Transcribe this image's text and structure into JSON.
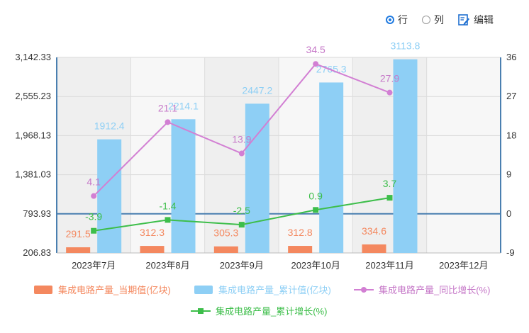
{
  "toolbar": {
    "options": [
      {
        "label": "行",
        "selected": true
      },
      {
        "label": "列",
        "selected": false
      }
    ],
    "edit_label": "编辑",
    "accent": "#1f7ae0"
  },
  "chart_data": {
    "type": "bar",
    "categories": [
      "2023年7月",
      "2023年8月",
      "2023年9月",
      "2023年10月",
      "2023年11月",
      "2023年12月"
    ],
    "series": [
      {
        "name": "集成电路产量_当期值(亿块)",
        "type": "bar",
        "axis": "left",
        "color": "#f4885f",
        "label_color": "#f4885f",
        "values": [
          291.5,
          312.3,
          305.3,
          312.8,
          334.6,
          null
        ]
      },
      {
        "name": "集成电路产量_累计值(亿块)",
        "type": "bar",
        "axis": "left",
        "color": "#8ecff5",
        "label_color": "#8ecff5",
        "values": [
          1912.4,
          2214.1,
          2447.2,
          2765.3,
          3113.8,
          null
        ]
      },
      {
        "name": "集成电路产量_同比增长(%)",
        "type": "line",
        "axis": "right",
        "color": "#d27fd3",
        "label_color": "#c679c8",
        "values": [
          4.1,
          21.1,
          13.9,
          34.5,
          27.9,
          null
        ]
      },
      {
        "name": "集成电路产量_累计增长(%)",
        "type": "line",
        "axis": "right",
        "color": "#3dbe4a",
        "label_color": "#3dbe4a",
        "values": [
          -3.9,
          -1.4,
          -2.5,
          0.9,
          3.7,
          null
        ]
      }
    ],
    "left_axis": {
      "ticks": [
        "206.83",
        "793.93",
        "1,381.03",
        "1,968.13",
        "2,555.23",
        "3,142.33"
      ],
      "min": 206.83,
      "max": 3142.33
    },
    "right_axis": {
      "ticks": [
        "-9",
        "0",
        "9",
        "18",
        "27",
        "36"
      ],
      "min": -9,
      "max": 36
    },
    "zero_line_color": "#4a7fb0",
    "grid": true,
    "legend_position": "bottom"
  }
}
